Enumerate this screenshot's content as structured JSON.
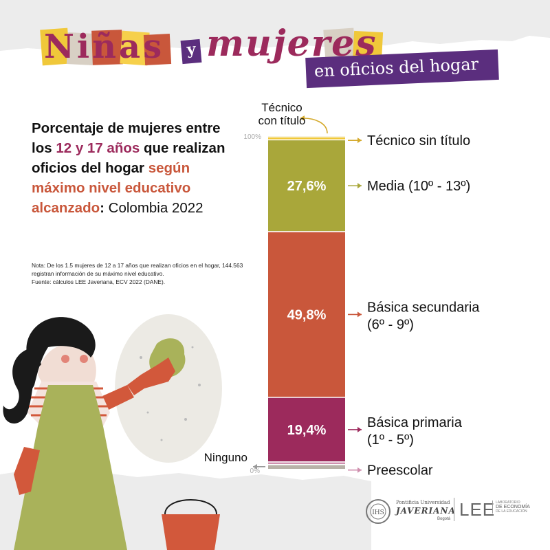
{
  "header": {
    "title_words": [
      "Niñas",
      "y",
      "mujeres"
    ],
    "subtitle": "en oficios del hogar"
  },
  "text": {
    "heading_1": "Porcentaje de mujeres entre los ",
    "heading_highlight_1": "12 y 17 años",
    "heading_2": " que realizan oficios del hogar ",
    "heading_highlight_2": "según máximo nivel educativo alcanzado",
    "heading_3": ": ",
    "heading_4": "Colombia 2022",
    "note_1": "Nota: De los 1.5 mujeres de 12 a 17 años que realizan oficios en el hogar, 144.563 registran información de su máximo nivel educativo.",
    "note_2": "Fuente: cálculos LEE Javeriana, ECV 2022 (DANE)."
  },
  "logos": {
    "university_line1": "Pontificia Universidad",
    "university_line2": "JAVERIANA",
    "university_line3": "Bogotá",
    "lee": "LEE",
    "lee_sub_1": "LABORATORIO",
    "lee_sub_2": "DE ECONOMÍA",
    "lee_sub_3": "DE LA EDUCACIÓN"
  },
  "colors": {
    "purple": "#5b2e7e",
    "title_magenta": "#9c2a5c",
    "title_orange": "#c9573b",
    "illustration_green": "#a9b25a",
    "glove_orange": "#d2583b"
  },
  "chart_data": {
    "type": "bar",
    "stacked": true,
    "ylim": [
      0,
      100
    ],
    "yticks": [
      "0%",
      "100%"
    ],
    "segments": [
      {
        "name": "Ninguno",
        "value": 1.3,
        "color": "#b8b1a8",
        "label_lines": [
          "Ninguno"
        ],
        "side": "left",
        "value_label": ""
      },
      {
        "name": "Preescolar",
        "value": 0.8,
        "color": "#cf8fae",
        "label_lines": [
          "Preescolar"
        ],
        "side": "right",
        "value_label": ""
      },
      {
        "name": "Básica primaria",
        "value": 19.4,
        "color": "#9c2a5c",
        "label_lines": [
          "Básica primaria",
          "(1º - 5º)"
        ],
        "side": "right",
        "value_label": "19,4%"
      },
      {
        "name": "Básica secundaria",
        "value": 49.8,
        "color": "#c9573b",
        "label_lines": [
          "Básica secundaria",
          "(6º - 9º)"
        ],
        "side": "right",
        "value_label": "49,8%"
      },
      {
        "name": "Media",
        "value": 27.6,
        "color": "#a9a73a",
        "label_lines": [
          "Media (10º - 13º)"
        ],
        "side": "right",
        "value_label": "27,6%"
      },
      {
        "name": "Técnico sin título",
        "value": 0.9,
        "color": "#f0c83a",
        "label_lines": [
          "Técnico sin título"
        ],
        "side": "right",
        "value_label": ""
      },
      {
        "name": "Técnico con título",
        "value": 0.2,
        "color": "#d9c97a",
        "label_lines": [
          "Técnico",
          "con título"
        ],
        "side": "top",
        "value_label": ""
      }
    ]
  }
}
